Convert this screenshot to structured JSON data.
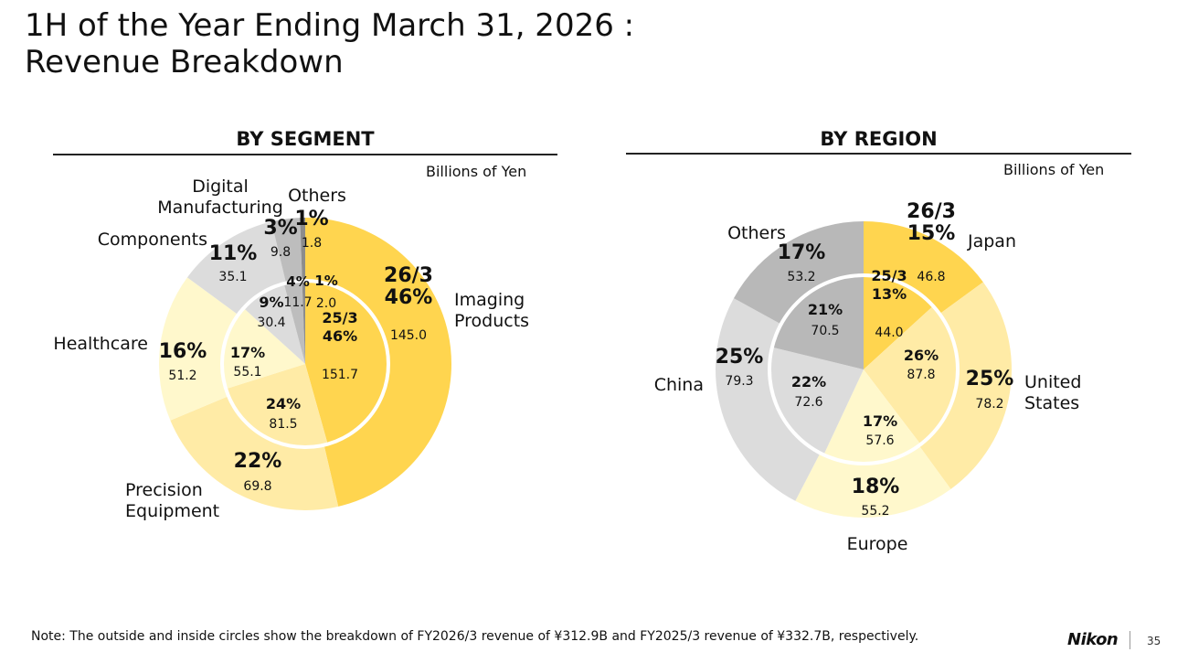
{
  "title_line1": "1H of the Year Ending March 31, 2026 :",
  "title_line2": "Revenue Breakdown",
  "note": "Note: The outside and inside circles show the breakdown of FY2026/3 revenue of ¥312.9B and FY2025/3 revenue of ¥332.7B, respectively.",
  "logo": "Nikon",
  "page_number": "35",
  "chart_data": [
    {
      "type": "pie",
      "subtype": "double-donut",
      "title": "BY SEGMENT",
      "units": "Billions of Yen",
      "outer_label_prefix": "26/3",
      "inner_label_prefix": "25/3",
      "segments": [
        {
          "name": "Imaging Products",
          "outer_pct": "46%",
          "outer_value": 145.0,
          "outer_value_text": "145.0",
          "inner_pct": "46%",
          "inner_value": 151.7,
          "inner_value_text": "151.7",
          "color": "#FFD54F"
        },
        {
          "name": "Precision Equipment",
          "outer_pct": "22%",
          "outer_value": 69.8,
          "outer_value_text": "69.8",
          "inner_pct": "24%",
          "inner_value": 81.5,
          "inner_value_text": "81.5",
          "color": "#FFEBA6"
        },
        {
          "name": "Healthcare",
          "outer_pct": "16%",
          "outer_value": 51.2,
          "outer_value_text": "51.2",
          "inner_pct": "17%",
          "inner_value": 55.1,
          "inner_value_text": "55.1",
          "color": "#FFF8CC"
        },
        {
          "name": "Components",
          "outer_pct": "11%",
          "outer_value": 35.1,
          "outer_value_text": "35.1",
          "inner_pct": "9%",
          "inner_value": 30.4,
          "inner_value_text": "30.4",
          "color": "#DCDCDC"
        },
        {
          "name": "Digital Manufacturing",
          "outer_pct": "3%",
          "outer_value": 9.8,
          "outer_value_text": "9.8",
          "inner_pct": "4%",
          "inner_value": 11.7,
          "inner_value_text": "11.7",
          "color": "#BDBDBD"
        },
        {
          "name": "Others",
          "outer_pct": "1%",
          "outer_value": 1.8,
          "outer_value_text": "1.8",
          "inner_pct": "1%",
          "inner_value": 2.0,
          "inner_value_text": "2.0",
          "color": "#8C8C8C"
        }
      ]
    },
    {
      "type": "pie",
      "subtype": "double-donut",
      "title": "BY REGION",
      "units": "Billions of Yen",
      "outer_label_prefix": "26/3",
      "inner_label_prefix": "25/3",
      "segments": [
        {
          "name": "Japan",
          "outer_pct": "15%",
          "outer_value": 46.8,
          "outer_value_text": "46.8",
          "inner_pct": "13%",
          "inner_value": 44.0,
          "inner_value_text": "44.0",
          "color": "#FFD54F"
        },
        {
          "name": "United States",
          "outer_pct": "25%",
          "outer_value": 78.2,
          "outer_value_text": "78.2",
          "inner_pct": "26%",
          "inner_value": 87.8,
          "inner_value_text": "87.8",
          "color": "#FFEBA6"
        },
        {
          "name": "Europe",
          "outer_pct": "18%",
          "outer_value": 55.2,
          "outer_value_text": "55.2",
          "inner_pct": "17%",
          "inner_value": 57.6,
          "inner_value_text": "57.6",
          "color": "#FFF8CC"
        },
        {
          "name": "China",
          "outer_pct": "25%",
          "outer_value": 79.3,
          "outer_value_text": "79.3",
          "inner_pct": "22%",
          "inner_value": 72.6,
          "inner_value_text": "72.6",
          "color": "#DCDCDC"
        },
        {
          "name": "Others",
          "outer_pct": "17%",
          "outer_value": 53.2,
          "outer_value_text": "53.2",
          "inner_pct": "21%",
          "inner_value": 70.5,
          "inner_value_text": "70.5",
          "color": "#B8B8B8"
        }
      ]
    }
  ]
}
